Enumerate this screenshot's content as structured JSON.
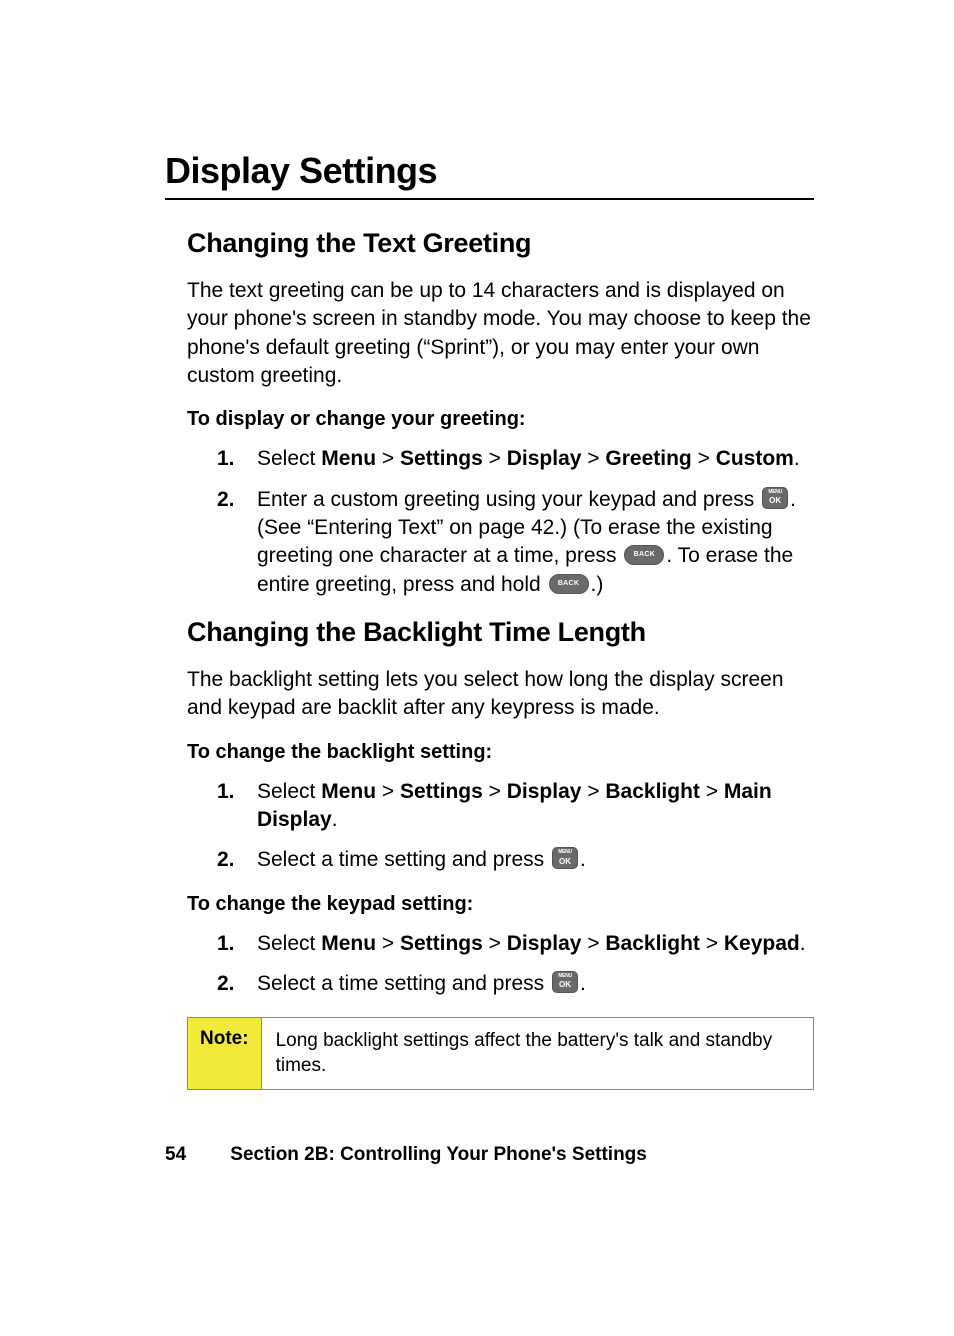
{
  "title": "Display Settings",
  "footer": {
    "page_number": "54",
    "section_label": "Section 2B: Controlling Your Phone's Settings"
  },
  "colors": {
    "text": "#000000",
    "background": "#ffffff",
    "note_bg": "#f2e93b",
    "note_border": "#888888",
    "icon_bg": "#6a6a6a",
    "underline": "#000000"
  },
  "typography": {
    "title_fontsize": 36,
    "subtitle_fontsize": 27,
    "body_fontsize": 21,
    "lead_fontsize": 20,
    "note_fontsize": 19,
    "footer_fontsize": 19
  },
  "sections": [
    {
      "heading": "Changing the Text Greeting",
      "intro": "The text greeting can be up to 14 characters and is displayed on your phone's screen in standby mode. You may choose to keep the phone's default greeting (“Sprint”), or you may enter your own custom greeting.",
      "lead1": "To display or change your greeting:",
      "steps1": {
        "n1": "1.",
        "n2": "2.",
        "s1_pre": "Select ",
        "s1_menu": "Menu",
        "s1_gt1": " > ",
        "s1_settings": "Settings",
        "s1_gt2": " > ",
        "s1_display": "Display",
        "s1_gt3": " > ",
        "s1_greeting": "Greeting",
        "s1_gt4": " > ",
        "s1_custom": "Custom",
        "s1_period": ".",
        "s2_a": "Enter a custom greeting using your keypad and press ",
        "s2_b": ". (See “Entering Text” on page 42.) (To erase the existing greeting one character at a time, press ",
        "s2_c": ". To erase the entire greeting, press and hold ",
        "s2_d": ".)"
      }
    },
    {
      "heading": "Changing the Backlight Time Length",
      "intro": "The backlight setting lets you select how long the display screen and keypad are backlit after any keypress is made.",
      "lead1": "To change the backlight setting:",
      "steps1": {
        "n1": "1.",
        "n2": "2.",
        "s1_pre": "Select ",
        "s1_menu": "Menu",
        "s1_gt1": " > ",
        "s1_settings": "Settings",
        "s1_gt2": " > ",
        "s1_display": "Display",
        "s1_gt3": " > ",
        "s1_backlight": "Backlight",
        "s1_gt4": " > ",
        "s1_main": "Main Display",
        "s1_period": ".",
        "s2_a": "Select a time setting and press ",
        "s2_b": "."
      },
      "lead2": "To change the keypad setting:",
      "steps2": {
        "n1": "1.",
        "n2": "2.",
        "s1_pre": "Select ",
        "s1_menu": "Menu",
        "s1_gt1": " > ",
        "s1_settings": "Settings",
        "s1_gt2": " > ",
        "s1_display": "Display",
        "s1_gt3": " > ",
        "s1_backlight": "Backlight",
        "s1_gt4": " > ",
        "s1_keypad": "Keypad",
        "s1_period": ".",
        "s2_a": "Select a time setting and press ",
        "s2_b": "."
      },
      "note": {
        "label": "Note:",
        "text": "Long backlight settings affect the battery's talk and standby times."
      }
    }
  ]
}
